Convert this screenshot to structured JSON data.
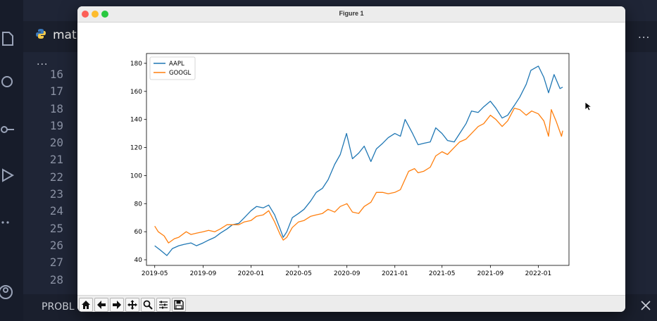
{
  "editor": {
    "tab_label": "matp",
    "more_label": "...",
    "line_numbers": [
      "16",
      "17",
      "18",
      "19",
      "20",
      "21",
      "22",
      "23",
      "24",
      "25",
      "26",
      "27",
      "28"
    ],
    "panel_label": "PROBL"
  },
  "window": {
    "title": "Figure 1"
  },
  "toolbar": {
    "buttons": [
      "home-icon",
      "back-icon",
      "forward-icon",
      "pan-icon",
      "zoom-icon",
      "configure-subplots-icon",
      "save-icon"
    ]
  },
  "chart_data": {
    "type": "line",
    "title": "",
    "xlabel": "",
    "ylabel": "",
    "xlim": [
      "2019-04-10",
      "2022-03-20"
    ],
    "ylim": [
      36,
      187
    ],
    "x_ticks": [
      "2019-05",
      "2019-09",
      "2020-01",
      "2020-05",
      "2020-09",
      "2021-01",
      "2021-05",
      "2021-09",
      "2022-01"
    ],
    "y_ticks": [
      40,
      60,
      80,
      100,
      120,
      140,
      160,
      180
    ],
    "legend_position": "upper-left",
    "colors": {
      "AAPL": "#1f77b4",
      "GOOGL": "#ff7f0e"
    },
    "series": [
      {
        "name": "AAPL",
        "points": [
          [
            "2019-05-01",
            50
          ],
          [
            "2019-05-15",
            47
          ],
          [
            "2019-06-01",
            43
          ],
          [
            "2019-06-15",
            48
          ],
          [
            "2019-07-01",
            50
          ],
          [
            "2019-07-15",
            51
          ],
          [
            "2019-08-01",
            52
          ],
          [
            "2019-08-15",
            50
          ],
          [
            "2019-09-01",
            52
          ],
          [
            "2019-09-15",
            54
          ],
          [
            "2019-10-01",
            56
          ],
          [
            "2019-10-15",
            59
          ],
          [
            "2019-11-01",
            62
          ],
          [
            "2019-11-15",
            65
          ],
          [
            "2019-12-01",
            66
          ],
          [
            "2019-12-15",
            70
          ],
          [
            "2020-01-01",
            75
          ],
          [
            "2020-01-15",
            78
          ],
          [
            "2020-02-01",
            77
          ],
          [
            "2020-02-15",
            79
          ],
          [
            "2020-03-01",
            72
          ],
          [
            "2020-03-15",
            62
          ],
          [
            "2020-03-23",
            56
          ],
          [
            "2020-04-01",
            60
          ],
          [
            "2020-04-15",
            70
          ],
          [
            "2020-05-01",
            73
          ],
          [
            "2020-05-15",
            76
          ],
          [
            "2020-06-01",
            82
          ],
          [
            "2020-06-15",
            88
          ],
          [
            "2020-07-01",
            91
          ],
          [
            "2020-07-15",
            97
          ],
          [
            "2020-08-01",
            108
          ],
          [
            "2020-08-15",
            115
          ],
          [
            "2020-08-31",
            130
          ],
          [
            "2020-09-15",
            112
          ],
          [
            "2020-10-01",
            116
          ],
          [
            "2020-10-15",
            121
          ],
          [
            "2020-11-01",
            110
          ],
          [
            "2020-11-15",
            119
          ],
          [
            "2020-12-01",
            123
          ],
          [
            "2020-12-15",
            127
          ],
          [
            "2021-01-01",
            130
          ],
          [
            "2021-01-15",
            128
          ],
          [
            "2021-01-27",
            140
          ],
          [
            "2021-02-15",
            130
          ],
          [
            "2021-03-01",
            122
          ],
          [
            "2021-03-15",
            123
          ],
          [
            "2021-04-01",
            124
          ],
          [
            "2021-04-15",
            134
          ],
          [
            "2021-05-01",
            130
          ],
          [
            "2021-05-15",
            125
          ],
          [
            "2021-06-01",
            124
          ],
          [
            "2021-06-15",
            130
          ],
          [
            "2021-07-01",
            137
          ],
          [
            "2021-07-15",
            146
          ],
          [
            "2021-08-01",
            145
          ],
          [
            "2021-08-15",
            149
          ],
          [
            "2021-09-01",
            153
          ],
          [
            "2021-09-15",
            148
          ],
          [
            "2021-10-01",
            141
          ],
          [
            "2021-10-15",
            143
          ],
          [
            "2021-11-01",
            150
          ],
          [
            "2021-11-15",
            156
          ],
          [
            "2021-12-01",
            165
          ],
          [
            "2021-12-13",
            175
          ],
          [
            "2022-01-01",
            178
          ],
          [
            "2022-01-15",
            170
          ],
          [
            "2022-01-27",
            159
          ],
          [
            "2022-02-10",
            172
          ],
          [
            "2022-02-25",
            162
          ],
          [
            "2022-03-04",
            163
          ]
        ]
      },
      {
        "name": "GOOGL",
        "points": [
          [
            "2019-05-01",
            64
          ],
          [
            "2019-05-10",
            60
          ],
          [
            "2019-05-25",
            57
          ],
          [
            "2019-06-05",
            52
          ],
          [
            "2019-06-20",
            55
          ],
          [
            "2019-07-01",
            56
          ],
          [
            "2019-07-20",
            60
          ],
          [
            "2019-08-01",
            58
          ],
          [
            "2019-08-15",
            59
          ],
          [
            "2019-09-01",
            60
          ],
          [
            "2019-09-15",
            61
          ],
          [
            "2019-10-01",
            60
          ],
          [
            "2019-10-15",
            62
          ],
          [
            "2019-11-01",
            65
          ],
          [
            "2019-11-15",
            65
          ],
          [
            "2019-12-01",
            65
          ],
          [
            "2019-12-15",
            67
          ],
          [
            "2020-01-01",
            68
          ],
          [
            "2020-01-15",
            71
          ],
          [
            "2020-02-01",
            72
          ],
          [
            "2020-02-15",
            75
          ],
          [
            "2020-03-01",
            67
          ],
          [
            "2020-03-15",
            58
          ],
          [
            "2020-03-23",
            54
          ],
          [
            "2020-04-01",
            56
          ],
          [
            "2020-04-15",
            63
          ],
          [
            "2020-05-01",
            67
          ],
          [
            "2020-05-15",
            68
          ],
          [
            "2020-06-01",
            71
          ],
          [
            "2020-06-15",
            72
          ],
          [
            "2020-07-01",
            73
          ],
          [
            "2020-07-15",
            76
          ],
          [
            "2020-08-01",
            74
          ],
          [
            "2020-08-15",
            78
          ],
          [
            "2020-09-01",
            80
          ],
          [
            "2020-09-15",
            74
          ],
          [
            "2020-10-01",
            73
          ],
          [
            "2020-10-15",
            78
          ],
          [
            "2020-11-01",
            81
          ],
          [
            "2020-11-15",
            88
          ],
          [
            "2020-12-01",
            88
          ],
          [
            "2020-12-15",
            87
          ],
          [
            "2021-01-01",
            88
          ],
          [
            "2021-01-15",
            90
          ],
          [
            "2021-02-05",
            103
          ],
          [
            "2021-02-20",
            105
          ],
          [
            "2021-03-01",
            102
          ],
          [
            "2021-03-15",
            103
          ],
          [
            "2021-04-01",
            106
          ],
          [
            "2021-04-15",
            114
          ],
          [
            "2021-05-01",
            117
          ],
          [
            "2021-05-15",
            115
          ],
          [
            "2021-06-01",
            120
          ],
          [
            "2021-06-15",
            124
          ],
          [
            "2021-07-01",
            126
          ],
          [
            "2021-07-15",
            130
          ],
          [
            "2021-08-01",
            135
          ],
          [
            "2021-08-15",
            137
          ],
          [
            "2021-09-01",
            143
          ],
          [
            "2021-09-15",
            140
          ],
          [
            "2021-10-01",
            135
          ],
          [
            "2021-10-15",
            139
          ],
          [
            "2021-11-01",
            148
          ],
          [
            "2021-11-15",
            147
          ],
          [
            "2021-12-01",
            143
          ],
          [
            "2021-12-15",
            146
          ],
          [
            "2022-01-01",
            144
          ],
          [
            "2022-01-15",
            139
          ],
          [
            "2022-01-27",
            128
          ],
          [
            "2022-02-03",
            147
          ],
          [
            "2022-02-15",
            139
          ],
          [
            "2022-03-01",
            128
          ],
          [
            "2022-03-04",
            132
          ]
        ]
      }
    ]
  }
}
